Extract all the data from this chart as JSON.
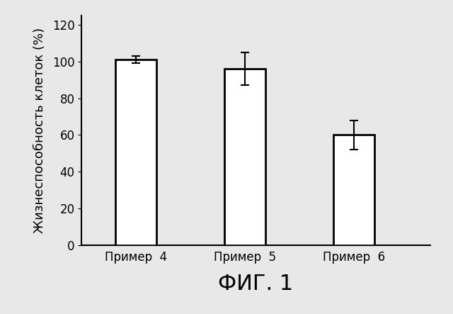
{
  "categories": [
    "Пример  4",
    "Пример  5",
    "Пример  6"
  ],
  "values": [
    101,
    96,
    60
  ],
  "errors": [
    2,
    9,
    8
  ],
  "bar_color": "#ffffff",
  "bar_edgecolor": "#000000",
  "bar_linewidth": 2.0,
  "bar_width": 0.38,
  "bar_positions": [
    1,
    2,
    3
  ],
  "ylabel": "Жизнеспособность клеток (%)",
  "xlabel": "ФИГ. 1",
  "ylim": [
    0,
    125
  ],
  "yticks": [
    0,
    20,
    40,
    60,
    80,
    100,
    120
  ],
  "background_color": "#e8e8e8",
  "label_fontsize": 13,
  "tick_fontsize": 12,
  "xlabel_fontsize": 22,
  "capsize": 4,
  "error_linewidth": 1.5,
  "xlim": [
    0.5,
    3.7
  ]
}
